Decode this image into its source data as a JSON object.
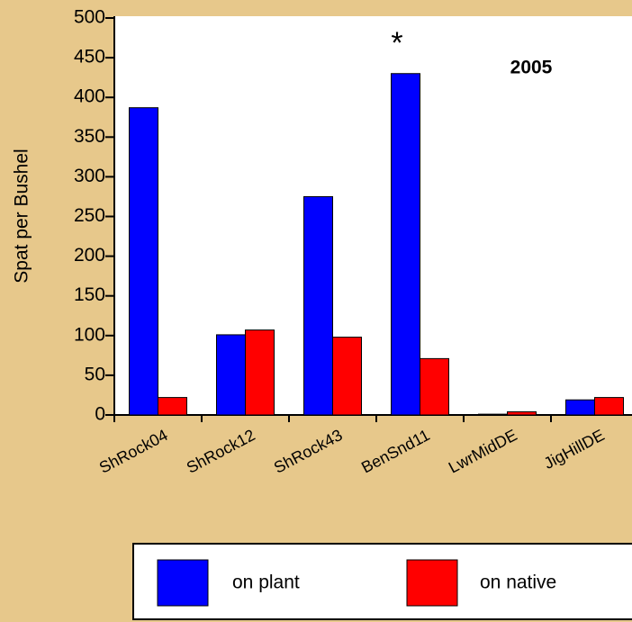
{
  "chart_data": {
    "type": "bar",
    "y_label": "Spat per Bushel",
    "annotations": [
      "*",
      "2005"
    ],
    "categories": [
      "ShRock04",
      "ShRock12",
      "ShRock43",
      "BenSnd11",
      "LwrMidDE",
      "JigHillDE"
    ],
    "series": [
      {
        "name": "on plant",
        "color": "#0000ff",
        "values": [
          387,
          101,
          275,
          430,
          1,
          19
        ]
      },
      {
        "name": "on native",
        "color": "#ff0000",
        "values": [
          22,
          107,
          98,
          71,
          4,
          22
        ]
      }
    ],
    "ylim": [
      0,
      500
    ],
    "yticks": [
      0,
      50,
      100,
      150,
      200,
      250,
      300,
      350,
      400,
      450,
      500
    ],
    "legend": "bottom"
  }
}
